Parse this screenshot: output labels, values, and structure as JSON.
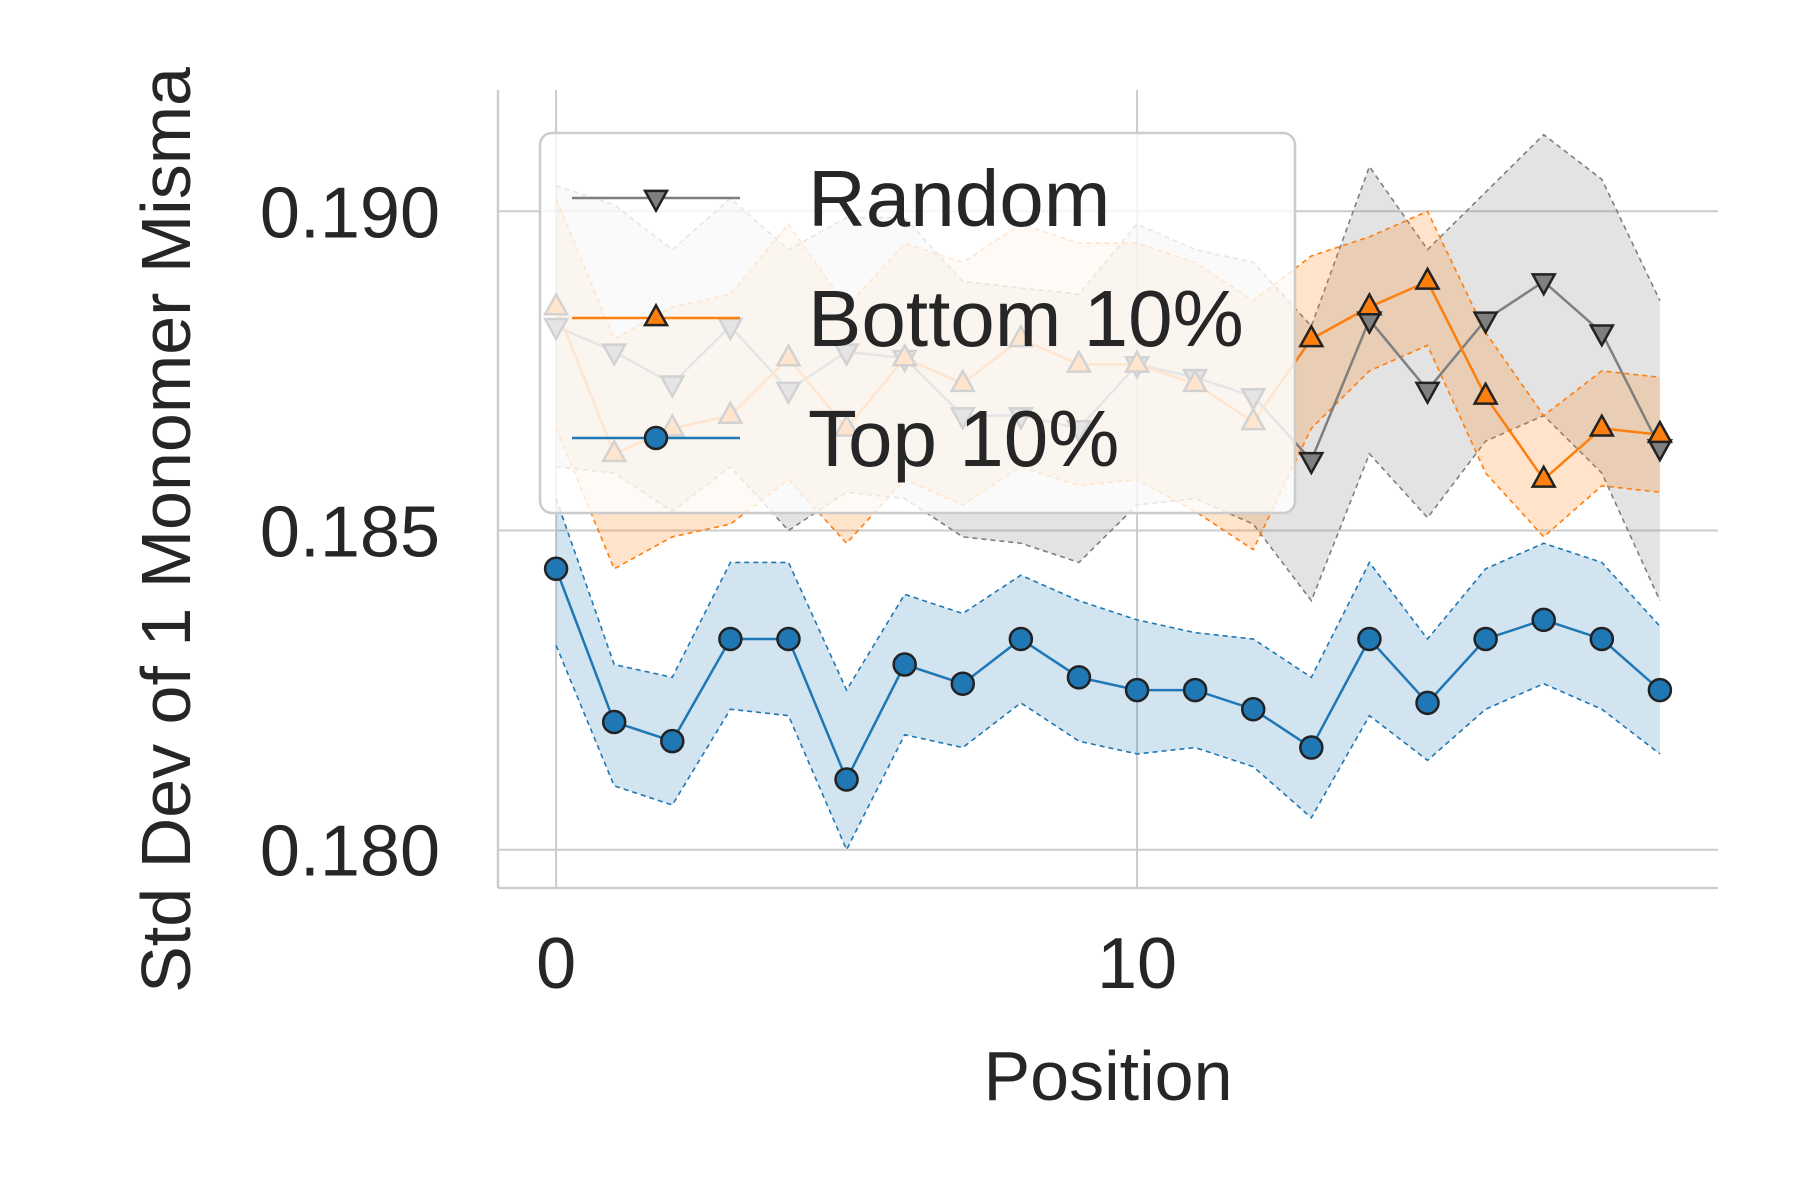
{
  "chart_data": {
    "type": "line",
    "xlabel": "Position",
    "ylabel": "Std Dev of 1 Monomer Misma",
    "xlim": [
      -1,
      20
    ],
    "ylim": [
      0.1794,
      0.1919
    ],
    "xticks": [
      0,
      10
    ],
    "xtick_labels": [
      "0",
      "10"
    ],
    "yticks": [
      0.18,
      0.185,
      0.19
    ],
    "ytick_labels": [
      "0.180",
      "0.185",
      "0.190"
    ],
    "grid": true,
    "legend_position": "top-left",
    "x": [
      0,
      1,
      2,
      3,
      4,
      5,
      6,
      7,
      8,
      9,
      10,
      11,
      12,
      13,
      14,
      15,
      16,
      17,
      18,
      19
    ],
    "series": [
      {
        "name": "Random",
        "color": "#7f7f7f",
        "marker": "triangle-down",
        "values": [
          0.1882,
          0.1878,
          0.1873,
          0.1882,
          0.1872,
          0.1878,
          0.1877,
          0.1868,
          0.1868,
          0.1866,
          0.1876,
          0.1874,
          0.1871,
          0.1861,
          0.1883,
          0.1872,
          0.1883,
          0.1889,
          0.1881,
          0.1863
        ],
        "lower": [
          0.186,
          0.1859,
          0.1853,
          0.186,
          0.185,
          0.1856,
          0.1855,
          0.1849,
          0.1848,
          0.1845,
          0.1854,
          0.1855,
          0.1851,
          0.1839,
          0.1862,
          0.1852,
          0.1864,
          0.1868,
          0.1859,
          0.1839
        ],
        "upper": [
          0.1904,
          0.1901,
          0.1894,
          0.1902,
          0.1894,
          0.1899,
          0.1899,
          0.1889,
          0.1888,
          0.1887,
          0.1898,
          0.1894,
          0.1892,
          0.1882,
          0.1907,
          0.1894,
          0.1903,
          0.1912,
          0.1905,
          0.1886
        ]
      },
      {
        "name": "Bottom 10%",
        "color": "#ff7f0e",
        "marker": "triangle-up",
        "values": [
          0.1885,
          0.1862,
          0.1866,
          0.1868,
          0.1877,
          0.1866,
          0.1877,
          0.1873,
          0.188,
          0.1876,
          0.1876,
          0.1873,
          0.1867,
          0.188,
          0.1885,
          0.1889,
          0.1871,
          0.1858,
          0.1866,
          0.1865
        ],
        "lower": [
          0.1866,
          0.1844,
          0.1849,
          0.1851,
          0.1858,
          0.1848,
          0.1858,
          0.1854,
          0.186,
          0.1857,
          0.1858,
          0.1853,
          0.1847,
          0.1866,
          0.1875,
          0.1879,
          0.1859,
          0.1849,
          0.1857,
          0.1856
        ],
        "upper": [
          0.1902,
          0.188,
          0.1885,
          0.1887,
          0.1898,
          0.1885,
          0.1895,
          0.1892,
          0.1898,
          0.1895,
          0.1895,
          0.1892,
          0.1886,
          0.1893,
          0.1896,
          0.19,
          0.1881,
          0.1868,
          0.1875,
          0.1874
        ]
      },
      {
        "name": "Top 10%",
        "color": "#1f77b4",
        "marker": "circle",
        "values": [
          0.1844,
          0.182,
          0.1817,
          0.1833,
          0.1833,
          0.1811,
          0.1829,
          0.1826,
          0.1833,
          0.1827,
          0.1825,
          0.1825,
          0.1822,
          0.1816,
          0.1833,
          0.1823,
          0.1833,
          0.1836,
          0.1833,
          0.1825
        ],
        "lower": [
          0.1832,
          0.181,
          0.1807,
          0.1822,
          0.1821,
          0.18,
          0.1818,
          0.1816,
          0.1823,
          0.1817,
          0.1815,
          0.1816,
          0.1813,
          0.1805,
          0.1821,
          0.1814,
          0.1822,
          0.1826,
          0.1822,
          0.1815
        ],
        "upper": [
          0.1855,
          0.1829,
          0.1827,
          0.1845,
          0.1845,
          0.1825,
          0.184,
          0.1837,
          0.1843,
          0.1839,
          0.1836,
          0.1834,
          0.1833,
          0.1827,
          0.1845,
          0.1833,
          0.1844,
          0.1848,
          0.1845,
          0.1835
        ]
      }
    ]
  }
}
